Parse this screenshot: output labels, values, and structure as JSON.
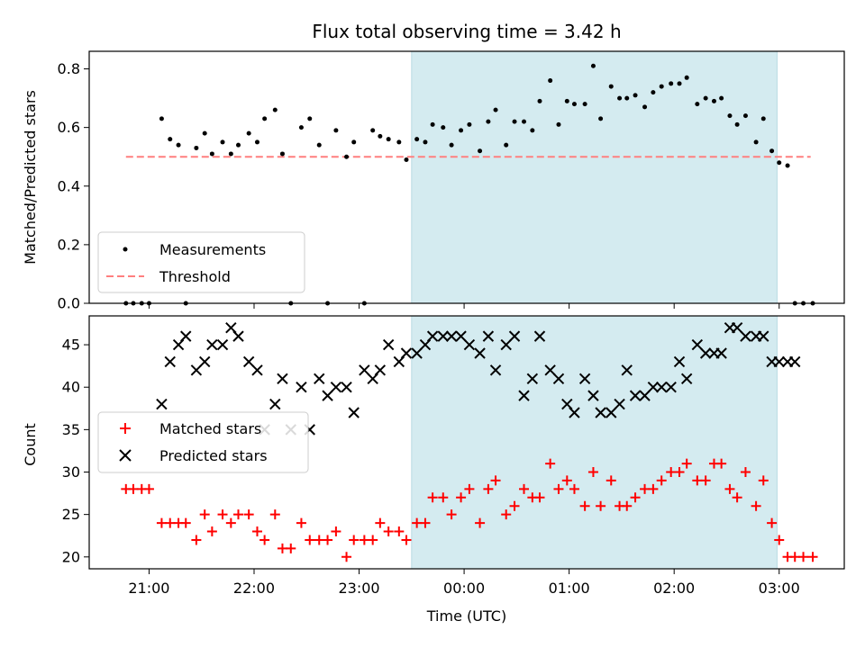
{
  "chart_data": [
    {
      "type": "scatter",
      "title": "Flux total observing time = 3.42 h",
      "xlabel": "",
      "ylabel": "Matched/Predicted stars",
      "ylim": [
        0.0,
        0.86
      ],
      "yticks": [
        0.0,
        0.2,
        0.4,
        0.6,
        0.8
      ],
      "ytick_labels": [
        "0.0",
        "0.2",
        "0.4",
        "0.6",
        "0.8"
      ],
      "x_unit": "hours after 21:00 UTC",
      "observing_window": [
        2.5,
        5.98
      ],
      "legend": {
        "position": "lower-left",
        "entries": [
          {
            "name": "Measurements",
            "marker": "dot",
            "color": "#000000"
          },
          {
            "name": "Threshold",
            "marker": "dashed-line",
            "color": "#ff7f7f"
          }
        ]
      },
      "threshold": {
        "name": "Threshold",
        "y": 0.5,
        "x_range": [
          -0.22,
          6.3
        ]
      },
      "series": [
        {
          "name": "Measurements",
          "color": "#000000",
          "x": [
            -0.22,
            -0.15,
            -0.07,
            0.0,
            0.12,
            0.2,
            0.28,
            0.35,
            0.45,
            0.53,
            0.6,
            0.7,
            0.78,
            0.85,
            0.95,
            1.03,
            1.1,
            1.2,
            1.27,
            1.35,
            1.45,
            1.53,
            1.62,
            1.7,
            1.78,
            1.88,
            1.95,
            2.05,
            2.13,
            2.2,
            2.28,
            2.38,
            2.45,
            2.55,
            2.63,
            2.7,
            2.8,
            2.88,
            2.97,
            3.05,
            3.15,
            3.23,
            3.3,
            3.4,
            3.48,
            3.57,
            3.65,
            3.72,
            3.82,
            3.9,
            3.98,
            4.05,
            4.15,
            4.23,
            4.3,
            4.4,
            4.48,
            4.55,
            4.63,
            4.72,
            4.8,
            4.88,
            4.97,
            5.05,
            5.12,
            5.22,
            5.3,
            5.38,
            5.45,
            5.53,
            5.6,
            5.68,
            5.78,
            5.85,
            5.93,
            6.0,
            6.08,
            6.15,
            6.23,
            6.32
          ],
          "y": [
            0.0,
            0.0,
            0.0,
            0.0,
            0.63,
            0.56,
            0.54,
            0.0,
            0.53,
            0.58,
            0.51,
            0.55,
            0.51,
            0.54,
            0.58,
            0.55,
            0.63,
            0.66,
            0.51,
            0.0,
            0.6,
            0.63,
            0.54,
            0.0,
            0.59,
            0.5,
            0.55,
            0.0,
            0.59,
            0.57,
            0.56,
            0.55,
            0.49,
            0.56,
            0.55,
            0.61,
            0.6,
            0.54,
            0.59,
            0.61,
            0.52,
            0.62,
            0.66,
            0.54,
            0.62,
            0.62,
            0.59,
            0.69,
            0.76,
            0.61,
            0.69,
            0.68,
            0.68,
            0.81,
            0.63,
            0.74,
            0.7,
            0.7,
            0.71,
            0.67,
            0.72,
            0.74,
            0.75,
            0.75,
            0.77,
            0.68,
            0.7,
            0.69,
            0.7,
            0.64,
            0.61,
            0.64,
            0.55,
            0.63,
            0.52,
            0.48,
            0.47,
            0.0,
            0.0,
            0.0
          ]
        }
      ]
    },
    {
      "type": "scatter",
      "title": "",
      "xlabel": "Time (UTC)",
      "ylabel": "Count",
      "ylim": [
        18.6,
        48.4
      ],
      "yticks": [
        20,
        25,
        30,
        35,
        40,
        45
      ],
      "ytick_labels": [
        "20",
        "25",
        "30",
        "35",
        "40",
        "45"
      ],
      "xlim": [
        -0.57,
        6.62
      ],
      "xticks": [
        0,
        1,
        2,
        3,
        4,
        5,
        6
      ],
      "xtick_labels": [
        "21:00",
        "22:00",
        "23:00",
        "00:00",
        "01:00",
        "02:00",
        "03:00"
      ],
      "x_unit": "hours after 21:00 UTC",
      "observing_window": [
        2.5,
        5.98
      ],
      "legend": {
        "position": "center-left",
        "entries": [
          {
            "name": "Matched stars",
            "marker": "plus",
            "color": "#ff0000"
          },
          {
            "name": "Predicted stars",
            "marker": "x",
            "color": "#000000"
          }
        ]
      },
      "series": [
        {
          "name": "Matched stars",
          "color": "#ff0000",
          "x": [
            -0.22,
            -0.15,
            -0.07,
            0.0,
            0.12,
            0.2,
            0.28,
            0.35,
            0.45,
            0.53,
            0.6,
            0.7,
            0.78,
            0.85,
            0.95,
            1.03,
            1.1,
            1.2,
            1.27,
            1.35,
            1.45,
            1.53,
            1.62,
            1.7,
            1.78,
            1.88,
            1.95,
            2.05,
            2.13,
            2.2,
            2.28,
            2.38,
            2.45,
            2.55,
            2.63,
            2.7,
            2.8,
            2.88,
            2.97,
            3.05,
            3.15,
            3.23,
            3.3,
            3.4,
            3.48,
            3.57,
            3.65,
            3.72,
            3.82,
            3.9,
            3.98,
            4.05,
            4.15,
            4.23,
            4.3,
            4.4,
            4.48,
            4.55,
            4.63,
            4.72,
            4.8,
            4.88,
            4.97,
            5.05,
            5.12,
            5.22,
            5.3,
            5.38,
            5.45,
            5.53,
            5.6,
            5.68,
            5.78,
            5.85,
            5.93,
            6.0,
            6.08,
            6.15,
            6.23,
            6.32
          ],
          "y": [
            28,
            28,
            28,
            28,
            24,
            24,
            24,
            24,
            22,
            25,
            23,
            25,
            24,
            25,
            25,
            23,
            22,
            25,
            21,
            21,
            24,
            22,
            22,
            22,
            23,
            20,
            22,
            22,
            22,
            24,
            23,
            23,
            22,
            24,
            24,
            27,
            27,
            25,
            27,
            28,
            24,
            28,
            29,
            25,
            26,
            28,
            27,
            27,
            31,
            28,
            29,
            28,
            26,
            30,
            26,
            29,
            26,
            26,
            27,
            28,
            28,
            29,
            30,
            30,
            31,
            29,
            29,
            31,
            31,
            28,
            27,
            30,
            26,
            29,
            24,
            22,
            20,
            20,
            20,
            20
          ]
        },
        {
          "name": "Predicted stars",
          "color": "#000000",
          "x": [
            0.12,
            0.2,
            0.28,
            0.35,
            0.45,
            0.53,
            0.6,
            0.7,
            0.78,
            0.85,
            0.95,
            1.03,
            1.1,
            1.2,
            1.27,
            1.35,
            1.45,
            1.53,
            1.62,
            1.7,
            1.78,
            1.88,
            1.95,
            2.05,
            2.13,
            2.2,
            2.28,
            2.38,
            2.45,
            2.55,
            2.63,
            2.7,
            2.8,
            2.88,
            2.97,
            3.05,
            3.15,
            3.23,
            3.3,
            3.4,
            3.48,
            3.57,
            3.65,
            3.72,
            3.82,
            3.9,
            3.98,
            4.05,
            4.15,
            4.23,
            4.3,
            4.4,
            4.48,
            4.55,
            4.63,
            4.72,
            4.8,
            4.88,
            4.97,
            5.05,
            5.12,
            5.22,
            5.3,
            5.38,
            5.45,
            5.53,
            5.6,
            5.68,
            5.78,
            5.85,
            5.93,
            6.0,
            6.08,
            6.15
          ],
          "y": [
            38,
            43,
            45,
            46,
            42,
            43,
            45,
            45,
            47,
            46,
            43,
            42,
            35,
            38,
            41,
            35,
            40,
            35,
            41,
            39,
            40,
            40,
            37,
            42,
            41,
            42,
            45,
            43,
            44,
            44,
            45,
            46,
            46,
            46,
            46,
            45,
            44,
            46,
            42,
            45,
            46,
            39,
            41,
            46,
            42,
            41,
            38,
            37,
            41,
            39,
            37,
            37,
            38,
            42,
            39,
            39,
            40,
            40,
            40,
            43,
            41,
            45,
            44,
            44,
            44,
            47,
            47,
            46,
            46,
            46,
            43,
            43,
            43,
            43
          ]
        }
      ]
    }
  ]
}
